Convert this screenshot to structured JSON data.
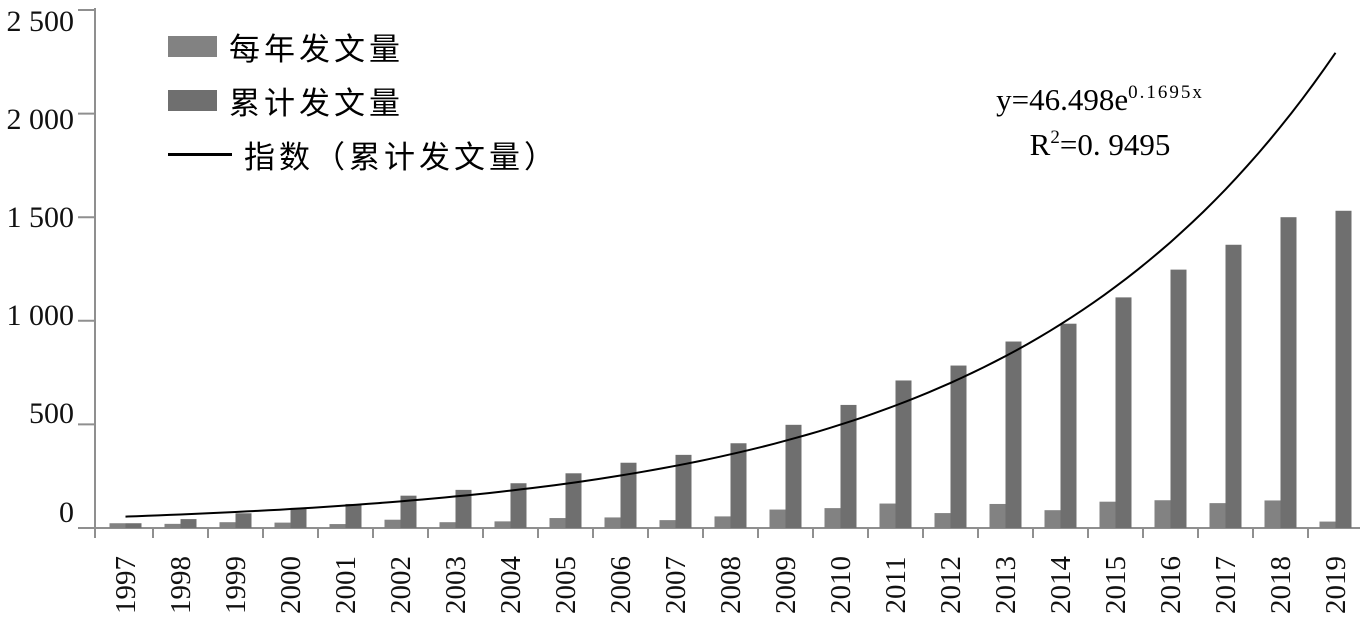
{
  "chart_data": {
    "type": "bar",
    "title": "",
    "categories": [
      "1997",
      "1998",
      "1999",
      "2000",
      "2001",
      "2002",
      "2003",
      "2004",
      "2005",
      "2006",
      "2007",
      "2008",
      "2009",
      "2010",
      "2011",
      "2012",
      "2013",
      "2014",
      "2015",
      "2016",
      "2017",
      "2018",
      "2019"
    ],
    "series": [
      {
        "name": "每年发文量",
        "type": "bar",
        "color": "#828282",
        "values": [
          23,
          20,
          28,
          26,
          19,
          40,
          28,
          32,
          48,
          51,
          38,
          56,
          89,
          96,
          118,
          72,
          116,
          86,
          127,
          134,
          120,
          133,
          31
        ]
      },
      {
        "name": "累计发文量",
        "type": "bar",
        "color": "#6f6f6f",
        "values": [
          23,
          43,
          71,
          97,
          116,
          156,
          184,
          216,
          264,
          315,
          353,
          409,
          498,
          594,
          712,
          784,
          900,
          986,
          1113,
          1247,
          1367,
          1500,
          1531
        ]
      },
      {
        "name": "指数（累计发文量）",
        "type": "line",
        "color": "#000000",
        "fit": {
          "model": "exponential",
          "a": 46.498,
          "b": 0.1695,
          "r2": 0.9495
        }
      }
    ],
    "xlabel": "",
    "ylabel": "",
    "ylim": [
      0,
      2500
    ],
    "ytick_values": [
      2500,
      2000,
      1500,
      1000,
      500,
      0
    ],
    "ytick_labels": [
      "2 500",
      "2 000",
      "1 500",
      "1 000",
      "500",
      "0"
    ],
    "grid": false,
    "legend_position": "top-left",
    "axis_color": "#8f8f8f",
    "annotation": "y=46.498e^0.1695x ; R²=0. 9495"
  },
  "legend": {
    "item1": "每年发文量",
    "item2": "累计发文量",
    "item3": "指数（累计发文量）"
  },
  "equation": {
    "main": "y=46.498e",
    "exponent": "0.1695x",
    "r2_base": "R",
    "r2_sup": "2",
    "r2_value": "=0. 9495"
  }
}
